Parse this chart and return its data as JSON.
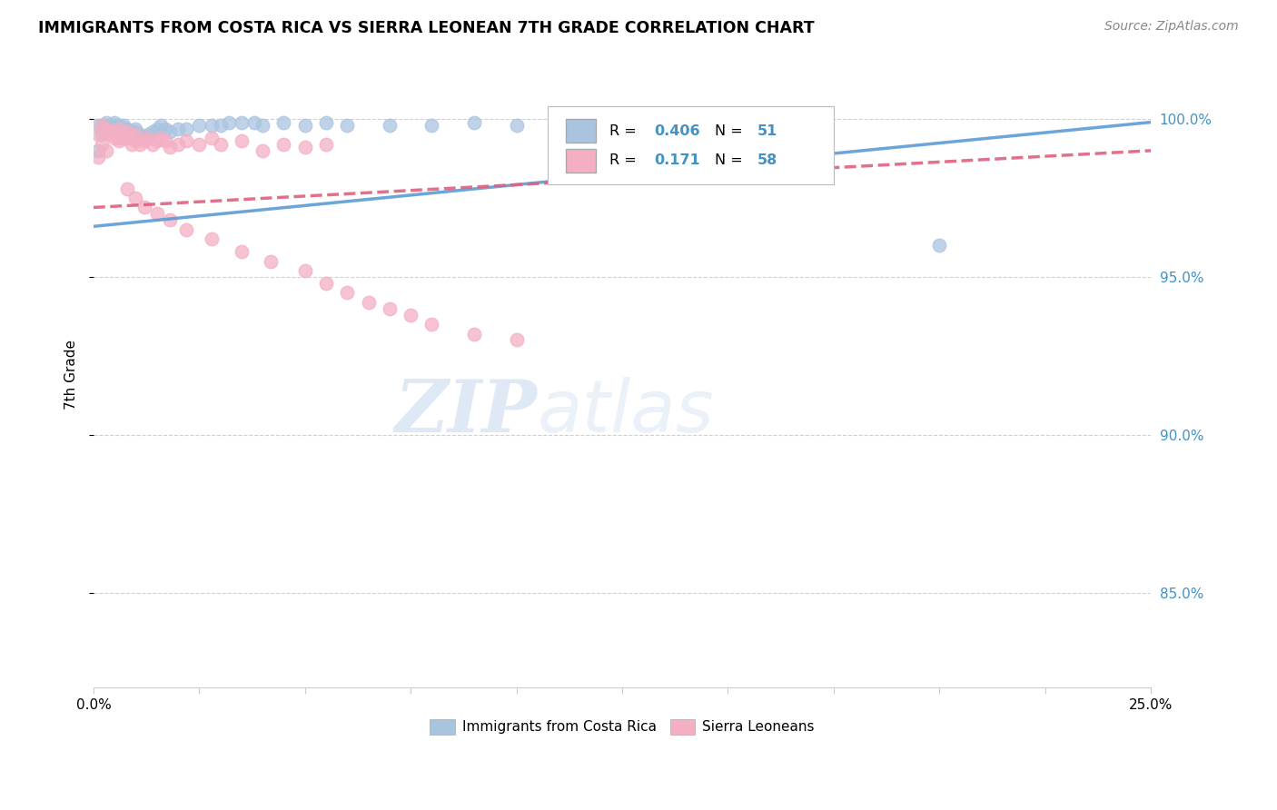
{
  "title": "IMMIGRANTS FROM COSTA RICA VS SIERRA LEONEAN 7TH GRADE CORRELATION CHART",
  "source": "Source: ZipAtlas.com",
  "ylabel": "7th Grade",
  "ytick_labels": [
    "85.0%",
    "90.0%",
    "95.0%",
    "100.0%"
  ],
  "ytick_values": [
    0.85,
    0.9,
    0.95,
    1.0
  ],
  "legend_label1": "Immigrants from Costa Rica",
  "legend_label2": "Sierra Leoneans",
  "r1": 0.406,
  "n1": 51,
  "r2": 0.171,
  "n2": 58,
  "color_blue": "#aac4e0",
  "color_pink": "#f4afc3",
  "color_blue_line": "#5b9bd5",
  "color_pink_line": "#e0607e",
  "color_blue_text": "#4292c6",
  "watermark_zip": "ZIP",
  "watermark_atlas": "atlas",
  "xmin": 0.0,
  "xmax": 0.25,
  "ymin": 0.82,
  "ymax": 1.018,
  "costa_rica_x": [
    0.001,
    0.001,
    0.002,
    0.002,
    0.003,
    0.003,
    0.003,
    0.004,
    0.004,
    0.005,
    0.005,
    0.005,
    0.006,
    0.006,
    0.006,
    0.007,
    0.007,
    0.007,
    0.008,
    0.008,
    0.009,
    0.009,
    0.01,
    0.01,
    0.011,
    0.012,
    0.013,
    0.014,
    0.015,
    0.016,
    0.017,
    0.018,
    0.02,
    0.022,
    0.025,
    0.028,
    0.03,
    0.032,
    0.035,
    0.038,
    0.04,
    0.045,
    0.05,
    0.055,
    0.06,
    0.07,
    0.08,
    0.09,
    0.1,
    0.12,
    0.2
  ],
  "costa_rica_y": [
    0.99,
    0.998,
    0.995,
    0.998,
    0.997,
    0.999,
    0.998,
    0.997,
    0.998,
    0.996,
    0.998,
    0.999,
    0.997,
    0.996,
    0.998,
    0.995,
    0.997,
    0.998,
    0.996,
    0.997,
    0.995,
    0.996,
    0.996,
    0.997,
    0.995,
    0.994,
    0.995,
    0.996,
    0.997,
    0.998,
    0.997,
    0.996,
    0.997,
    0.997,
    0.998,
    0.998,
    0.998,
    0.999,
    0.999,
    0.999,
    0.998,
    0.999,
    0.998,
    0.999,
    0.998,
    0.998,
    0.998,
    0.999,
    0.998,
    0.999,
    0.96
  ],
  "sierra_leone_x": [
    0.001,
    0.001,
    0.002,
    0.002,
    0.003,
    0.003,
    0.003,
    0.004,
    0.004,
    0.005,
    0.005,
    0.006,
    0.006,
    0.006,
    0.007,
    0.007,
    0.008,
    0.008,
    0.009,
    0.009,
    0.01,
    0.01,
    0.011,
    0.012,
    0.013,
    0.014,
    0.015,
    0.016,
    0.017,
    0.018,
    0.02,
    0.022,
    0.025,
    0.028,
    0.03,
    0.035,
    0.04,
    0.045,
    0.05,
    0.055,
    0.008,
    0.01,
    0.012,
    0.015,
    0.018,
    0.022,
    0.028,
    0.035,
    0.042,
    0.05,
    0.055,
    0.06,
    0.065,
    0.07,
    0.075,
    0.08,
    0.09,
    0.1
  ],
  "sierra_leone_y": [
    0.988,
    0.995,
    0.992,
    0.998,
    0.99,
    0.997,
    0.996,
    0.995,
    0.996,
    0.994,
    0.996,
    0.994,
    0.997,
    0.993,
    0.995,
    0.994,
    0.994,
    0.996,
    0.992,
    0.994,
    0.993,
    0.995,
    0.992,
    0.993,
    0.994,
    0.992,
    0.993,
    0.994,
    0.993,
    0.991,
    0.992,
    0.993,
    0.992,
    0.994,
    0.992,
    0.993,
    0.99,
    0.992,
    0.991,
    0.992,
    0.978,
    0.975,
    0.972,
    0.97,
    0.968,
    0.965,
    0.962,
    0.958,
    0.955,
    0.952,
    0.948,
    0.945,
    0.942,
    0.94,
    0.938,
    0.935,
    0.932,
    0.93
  ]
}
